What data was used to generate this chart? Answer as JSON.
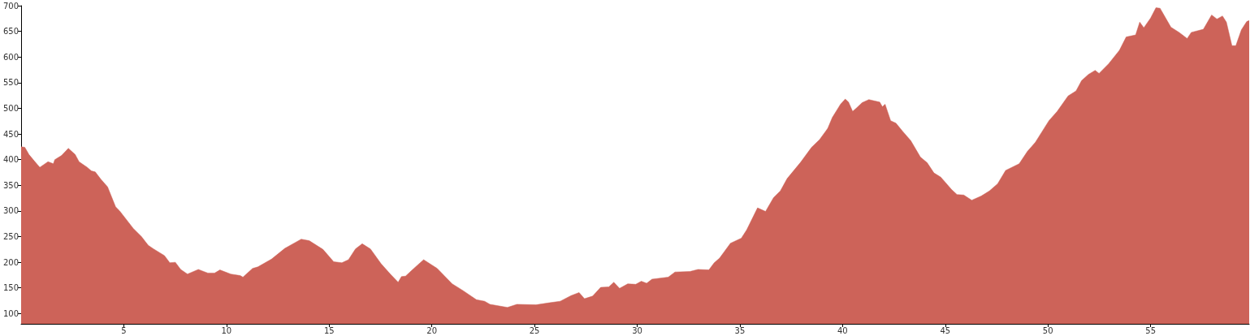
{
  "chart_data": {
    "type": "area",
    "color": "#cd6359",
    "x": [
      0,
      0.18,
      0.38,
      0.65,
      0.91,
      1.31,
      1.57,
      1.64,
      1.97,
      2.3,
      2.63,
      2.82,
      3.22,
      3.42,
      3.61,
      3.88,
      4.21,
      4.6,
      4.8,
      5.46,
      5.86,
      6.19,
      6.45,
      6.98,
      7.24,
      7.51,
      7.77,
      8.1,
      8.63,
      9.09,
      9.42,
      9.68,
      10.21,
      10.67,
      10.8,
      11.27,
      11.53,
      12.19,
      12.84,
      13.64,
      14.03,
      14.7,
      15.22,
      15.62,
      15.94,
      16.28,
      16.61,
      17.01,
      17.53,
      18.0,
      18.36,
      18.52,
      18.72,
      19.18,
      19.6,
      20.26,
      20.99,
      21.51,
      22.17,
      22.57,
      22.83,
      23.68,
      24.14,
      25.07,
      25.72,
      26.25,
      26.78,
      27.17,
      27.43,
      27.83,
      28.22,
      28.62,
      28.86,
      29.14,
      29.54,
      29.93,
      30.2,
      30.46,
      30.72,
      31.51,
      31.84,
      32.57,
      32.96,
      33.49,
      33.75,
      34.01,
      34.54,
      35.07,
      35.33,
      35.86,
      36.25,
      36.64,
      36.97,
      37.3,
      37.96,
      38.49,
      38.88,
      39.28,
      39.5,
      39.9,
      40.13,
      40.29,
      40.49,
      40.69,
      40.95,
      41.28,
      41.81,
      41.94,
      42.07,
      42.34,
      42.6,
      42.93,
      43.32,
      43.79,
      44.12,
      44.45,
      44.78,
      45.3,
      45.57,
      45.9,
      46.29,
      46.75,
      47.15,
      47.55,
      47.94,
      48.6,
      49.0,
      49.39,
      50.05,
      50.45,
      50.98,
      51.37,
      51.64,
      51.97,
      52.3,
      52.49,
      52.96,
      53.48,
      53.81,
      54.27,
      54.47,
      54.67,
      55.0,
      55.26,
      55.46,
      55.99,
      56.39,
      56.78,
      56.98,
      57.57,
      57.97,
      58.23,
      58.5,
      58.69,
      58.96,
      59.15,
      59.42,
      59.68,
      59.8
    ],
    "values": [
      425,
      424,
      410,
      397,
      385,
      396,
      392,
      400,
      408,
      422,
      410,
      396,
      385,
      378,
      376,
      362,
      347,
      308,
      300,
      266,
      250,
      233,
      226,
      213,
      199,
      200,
      186,
      177,
      186,
      179,
      179,
      185,
      177,
      174,
      171,
      188,
      191,
      206,
      227,
      245,
      242,
      225,
      201,
      199,
      205,
      226,
      236,
      226,
      197,
      176,
      161,
      172,
      173,
      190,
      205,
      188,
      158,
      145,
      127,
      124,
      118,
      112,
      118,
      117,
      121,
      124,
      135,
      141,
      129,
      134,
      151,
      152,
      161,
      149,
      158,
      157,
      163,
      159,
      167,
      171,
      181,
      182,
      186,
      185,
      199,
      208,
      237,
      247,
      263,
      306,
      299,
      326,
      339,
      363,
      395,
      424,
      439,
      461,
      482,
      508,
      518,
      512,
      494,
      501,
      511,
      517,
      512,
      503,
      508,
      476,
      471,
      455,
      437,
      405,
      394,
      374,
      366,
      342,
      332,
      331,
      321,
      329,
      339,
      353,
      379,
      392,
      416,
      434,
      476,
      494,
      524,
      534,
      554,
      566,
      574,
      568,
      587,
      613,
      639,
      643,
      668,
      657,
      676,
      696,
      695,
      658,
      648,
      636,
      648,
      654,
      682,
      674,
      680,
      668,
      622,
      622,
      653,
      669,
      671
    ],
    "xlim": [
      0,
      59.8
    ],
    "xticks": [
      5,
      10,
      15,
      20,
      25,
      30,
      35,
      40,
      45,
      50,
      55
    ],
    "ylim": [
      80,
      700
    ],
    "yticks": [
      100,
      150,
      200,
      250,
      300,
      350,
      400,
      450,
      500,
      550,
      600,
      650,
      700
    ],
    "grid": false
  }
}
